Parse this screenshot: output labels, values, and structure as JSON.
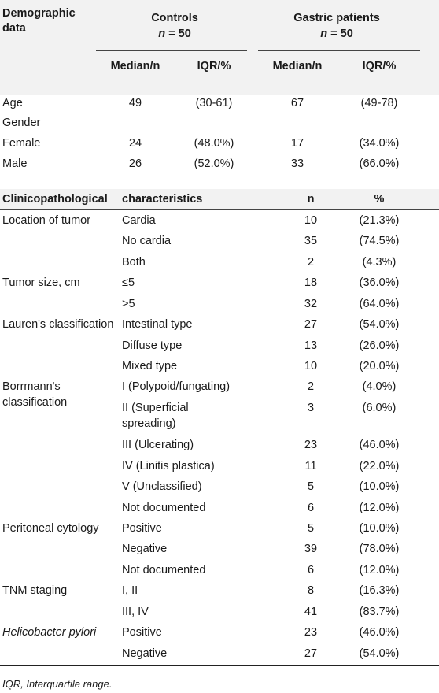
{
  "header": {
    "demographic_line1": "Demographic",
    "demographic_line2": "data",
    "controls_title": "Controls",
    "controls_n_prefix": "n",
    "controls_n_suffix": " = 50",
    "gastric_title": "Gastric patients",
    "gastric_n_prefix": "n",
    "gastric_n_suffix": " = 50",
    "col_median": "Median/n",
    "col_iqr": "IQR/%",
    "col_median2": "Median/n",
    "col_iqr2": "IQR/%"
  },
  "demographics": [
    {
      "label": "Age",
      "c_med": "49",
      "c_iqr": "(30-61)",
      "g_med": "67",
      "g_iqr": "(49-78)"
    },
    {
      "label": "Gender",
      "c_med": "",
      "c_iqr": "",
      "g_med": "",
      "g_iqr": ""
    },
    {
      "label": "Female",
      "c_med": "24",
      "c_iqr": "(48.0%)",
      "g_med": "17",
      "g_iqr": "(34.0%)"
    },
    {
      "label": "Male",
      "c_med": "26",
      "c_iqr": "(52.0%)",
      "g_med": "33",
      "g_iqr": "(66.0%)"
    }
  ],
  "clinico_header": {
    "label": "Clinicopathological",
    "label2": "characteristics",
    "n": "n",
    "pct": "%"
  },
  "clinico": [
    {
      "group": "Location of tumor",
      "sub": "Cardia",
      "n": "10",
      "pct": "(21.3%)"
    },
    {
      "group": "",
      "sub": "No cardia",
      "n": "35",
      "pct": "(74.5%)"
    },
    {
      "group": "",
      "sub": "Both",
      "n": "2",
      "pct": "(4.3%)"
    },
    {
      "group": "Tumor size, cm",
      "sub": "≤5",
      "n": "18",
      "pct": "(36.0%)"
    },
    {
      "group": "",
      "sub": ">5",
      "n": "32",
      "pct": "(64.0%)"
    },
    {
      "group": "Lauren's classification",
      "sub": "Intestinal type",
      "n": "27",
      "pct": "(54.0%)"
    },
    {
      "group": "",
      "sub": "Diffuse type",
      "n": "13",
      "pct": "(26.0%)"
    },
    {
      "group": "",
      "sub": "Mixed type",
      "n": "10",
      "pct": "(20.0%)"
    },
    {
      "group": "Borrmann's",
      "group2": "classification",
      "sub": "I (Polypoid/fungating)",
      "n": "2",
      "pct": "(4.0%)"
    },
    {
      "group": "",
      "sub": "II (Superficial",
      "sub2": "spreading)",
      "n": "3",
      "pct": "(6.0%)"
    },
    {
      "group": "",
      "sub": "III (Ulcerating)",
      "n": "23",
      "pct": "(46.0%)"
    },
    {
      "group": "",
      "sub": "IV (Linitis plastica)",
      "n": "11",
      "pct": "(22.0%)"
    },
    {
      "group": "",
      "sub": "V (Unclassified)",
      "n": "5",
      "pct": "(10.0%)"
    },
    {
      "group": "",
      "sub": "Not documented",
      "n": "6",
      "pct": "(12.0%)"
    },
    {
      "group": "Peritoneal cytology",
      "sub": "Positive",
      "n": "5",
      "pct": "(10.0%)"
    },
    {
      "group": "",
      "sub": "Negative",
      "n": "39",
      "pct": "(78.0%)"
    },
    {
      "group": "",
      "sub": "Not documented",
      "n": "6",
      "pct": "(12.0%)"
    },
    {
      "group": "TNM staging",
      "sub": "I, II",
      "n": "8",
      "pct": "(16.3%)"
    },
    {
      "group": "",
      "sub": "III, IV",
      "n": "41",
      "pct": "(83.7%)"
    },
    {
      "group": "Helicobacter pylori",
      "sub": "Positive",
      "n": "23",
      "pct": "(46.0%)"
    },
    {
      "group": "",
      "sub": "Negative",
      "n": "27",
      "pct": "(54.0%)"
    }
  ],
  "footnote": "IQR, Interquartile range."
}
